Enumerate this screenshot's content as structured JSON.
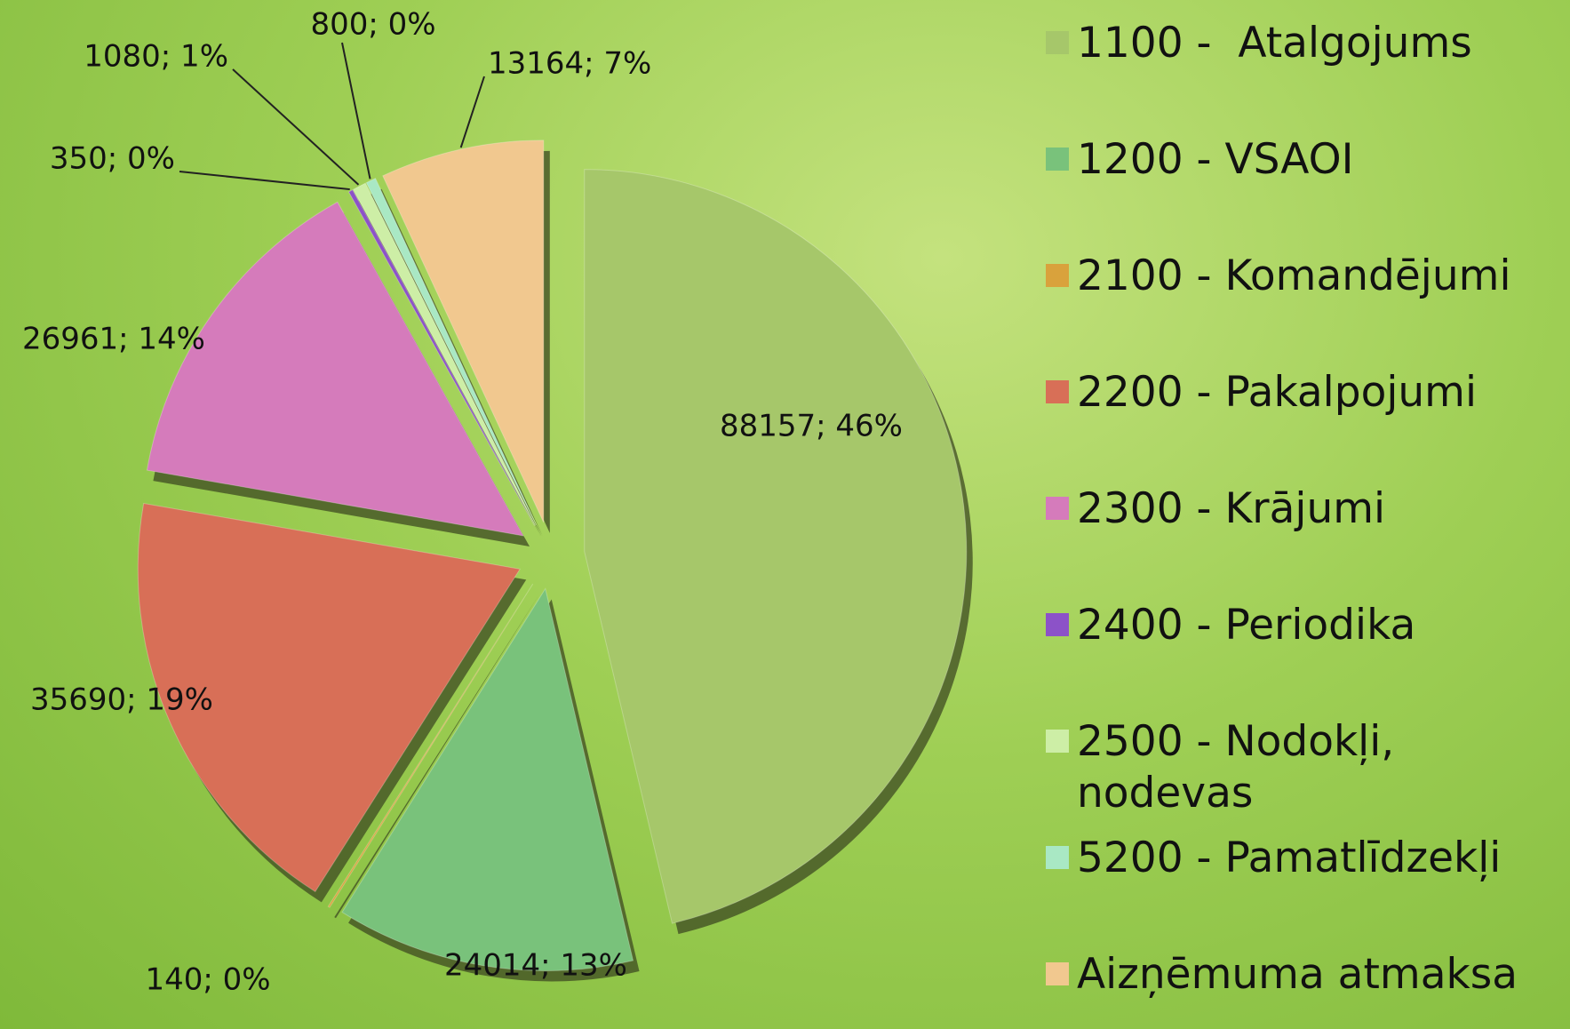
{
  "chart_data": {
    "type": "pie",
    "categories": [
      "1100 -  Atalgojums",
      "1200 - VSAOI",
      "2100 - Komandējumi",
      "2200 - Pakalpojumi",
      "2300 - Krājumi",
      "2400 - Periodika",
      "2500 - Nodokļi, nodevas",
      "5200 - Pamatlīdzekļi",
      "Aizņēmuma atmaksa"
    ],
    "values": [
      88157,
      24014,
      140,
      35690,
      26961,
      350,
      1080,
      800,
      13164
    ],
    "value_labels": [
      "88157; 46%",
      "24014; 13%",
      "140; 0%",
      "35690; 19%",
      "26961; 14%",
      "350; 0%",
      "1080; 1%",
      "800; 0%",
      "13164; 7%"
    ],
    "colors": [
      "#a6c76a",
      "#79c27b",
      "#d9a23c",
      "#d86f57",
      "#d57bbb",
      "#8c52c8",
      "#cdeea6",
      "#a9e8c4",
      "#f1c88f"
    ],
    "legend": "right"
  }
}
